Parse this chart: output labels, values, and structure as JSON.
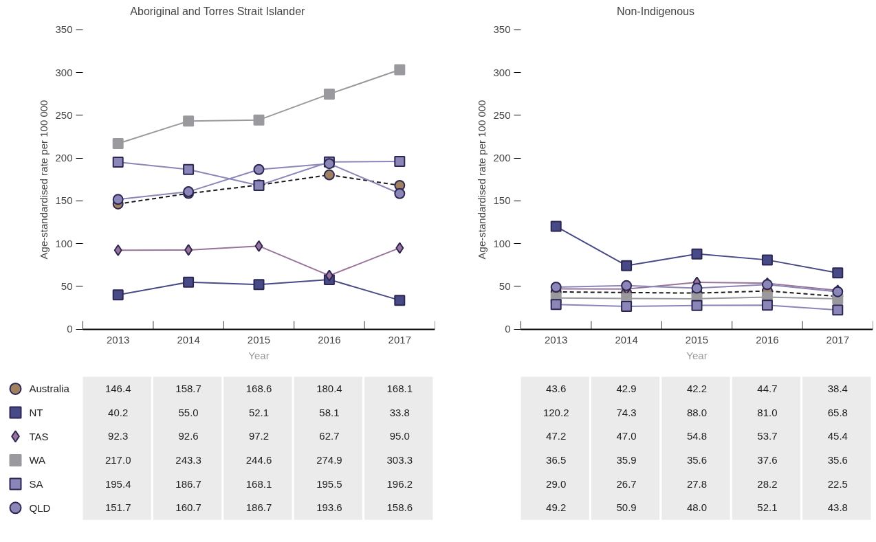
{
  "chart_data": [
    {
      "type": "line",
      "title": "Aboriginal and Torres Strait Islander",
      "ylabel": "Age-standardised rate per 100 000",
      "xlabel": "Year",
      "categories": [
        "2013",
        "2014",
        "2015",
        "2016",
        "2017"
      ],
      "ylim": [
        0,
        350
      ],
      "yticks": [
        0,
        50,
        100,
        150,
        200,
        250,
        300,
        350
      ],
      "grid": false,
      "legend": "bottom",
      "data_labels": true,
      "series": [
        {
          "name": "Australia",
          "color": "#a0805e",
          "marker": "circle",
          "line_style": "dashed",
          "values": [
            146.4,
            158.7,
            168.6,
            180.4,
            168.1
          ],
          "value_labels": [
            "146.4",
            "158.7",
            "168.6",
            "180.4",
            "168.1"
          ]
        },
        {
          "name": "NT",
          "color": "#474a86",
          "marker": "square",
          "line_style": "solid",
          "values": [
            40.2,
            55.0,
            52.1,
            58.1,
            33.8
          ],
          "value_labels": [
            "40.2",
            "55.0",
            "52.1",
            "58.1",
            "33.8"
          ]
        },
        {
          "name": "TAS",
          "color": "#9a739a",
          "marker": "diamond",
          "line_style": "solid",
          "values": [
            92.3,
            92.6,
            97.2,
            62.7,
            95.0
          ],
          "value_labels": [
            "92.3",
            "92.6",
            "97.2",
            "62.7",
            "95.0"
          ]
        },
        {
          "name": "WA",
          "color": "#9a9a9e",
          "marker": "square",
          "line_style": "solid",
          "values": [
            217.0,
            243.3,
            244.6,
            274.9,
            303.3
          ],
          "value_labels": [
            "217.0",
            "243.3",
            "244.6",
            "274.9",
            "303.3"
          ]
        },
        {
          "name": "SA",
          "color": "#8a86b8",
          "marker": "square",
          "line_style": "solid",
          "values": [
            195.4,
            186.7,
            168.1,
            195.5,
            196.2
          ],
          "value_labels": [
            "195.4",
            "186.7",
            "168.1",
            "195.5",
            "196.2"
          ]
        },
        {
          "name": "QLD",
          "color": "#8a86b8",
          "marker": "circle",
          "line_style": "solid",
          "values": [
            151.7,
            160.7,
            186.7,
            193.6,
            158.6
          ],
          "value_labels": [
            "151.7",
            "160.7",
            "186.7",
            "193.6",
            "158.6"
          ]
        }
      ]
    },
    {
      "type": "line",
      "title": "Non-Indigenous",
      "ylabel": "Age-standardised rate per 100 000",
      "xlabel": "Year",
      "categories": [
        "2013",
        "2014",
        "2015",
        "2016",
        "2017"
      ],
      "ylim": [
        0,
        350
      ],
      "yticks": [
        0,
        50,
        100,
        150,
        200,
        250,
        300,
        350
      ],
      "grid": false,
      "data_labels": true,
      "series": [
        {
          "color": "#a0805e",
          "marker": "circle",
          "line_style": "dashed",
          "values": [
            43.6,
            42.9,
            42.2,
            44.7,
            38.4
          ],
          "value_labels": [
            "43.6",
            "42.9",
            "42.2",
            "44.7",
            "38.4"
          ]
        },
        {
          "color": "#474a86",
          "marker": "square",
          "line_style": "solid",
          "values": [
            120.2,
            74.3,
            88.0,
            81.0,
            65.8
          ],
          "value_labels": [
            "120.2",
            "74.3",
            "88.0",
            "81.0",
            "65.8"
          ]
        },
        {
          "color": "#9a739a",
          "marker": "diamond",
          "line_style": "solid",
          "values": [
            47.2,
            47.0,
            54.8,
            53.7,
            45.4
          ],
          "value_labels": [
            "47.2",
            "47.0",
            "54.8",
            "53.7",
            "45.4"
          ]
        },
        {
          "color": "#9a9a9e",
          "marker": "square",
          "line_style": "solid",
          "values": [
            36.5,
            35.9,
            35.6,
            37.6,
            35.6
          ],
          "value_labels": [
            "36.5",
            "35.9",
            "35.6",
            "37.6",
            "35.6"
          ]
        },
        {
          "color": "#8a86b8",
          "marker": "square",
          "line_style": "solid",
          "values": [
            29.0,
            26.7,
            27.8,
            28.2,
            22.5
          ],
          "value_labels": [
            "29.0",
            "26.7",
            "27.8",
            "28.2",
            "22.5"
          ]
        },
        {
          "color": "#8a86b8",
          "marker": "circle",
          "line_style": "solid",
          "values": [
            49.2,
            50.9,
            48.0,
            52.1,
            43.8
          ],
          "value_labels": [
            "49.2",
            "50.9",
            "48.0",
            "52.1",
            "43.8"
          ]
        }
      ]
    }
  ]
}
